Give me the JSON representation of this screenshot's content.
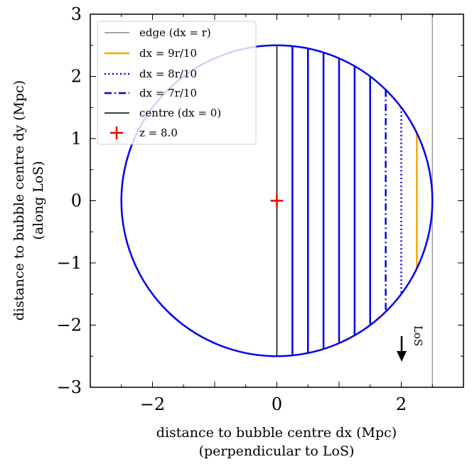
{
  "chart_data": {
    "type": "line",
    "xlabel": "distance to bubble centre dx (Mpc)",
    "xlabel_sub": "(perpendicular to LoS)",
    "ylabel": "distance to bubble centre dy (Mpc)",
    "ylabel_sub": "(along LoS)",
    "xlim": [
      -3,
      3
    ],
    "ylim": [
      -3,
      3
    ],
    "x_ticks": [
      -2,
      0,
      2
    ],
    "y_ticks": [
      -3,
      -2,
      -1,
      0,
      1,
      2,
      3
    ],
    "x_tick_labels": [
      "−2",
      "0",
      "2"
    ],
    "y_tick_labels": [
      "−3",
      "−2",
      "−1",
      "0",
      "1",
      "2",
      "3"
    ],
    "bubble_radius": 2.5,
    "chord_positions": [
      0.25,
      0.5,
      0.75,
      1.0,
      1.25,
      1.5
    ],
    "series": [
      {
        "name": "edge (dx = r)",
        "dx": 2.5,
        "color": "#888888",
        "style": "solid"
      },
      {
        "name": "dx = 9r/10",
        "dx": 2.25,
        "color": "#ffa500",
        "style": "solid"
      },
      {
        "name": "dx = 8r/10",
        "dx": 2.0,
        "color": "#0000ee",
        "style": "dotted"
      },
      {
        "name": "dx = 7r/10",
        "dx": 1.75,
        "color": "#0000ee",
        "style": "dashdot"
      },
      {
        "name": "centre (dx = 0)",
        "dx": 0,
        "color": "#000000",
        "style": "solid"
      }
    ],
    "marker": {
      "label": "z = 8.0",
      "x": 0,
      "y": 0,
      "color": "#ee0000"
    },
    "annotation": {
      "text": "LoS",
      "x": 2.0,
      "y": -2.3
    }
  },
  "legend": {
    "edge": "edge (dx = r)",
    "nine": "dx = 9r/10",
    "eight": "dx = 8r/10",
    "seven": "dx = 7r/10",
    "centre": "centre (dx = 0)",
    "marker": "z = 8.0"
  }
}
